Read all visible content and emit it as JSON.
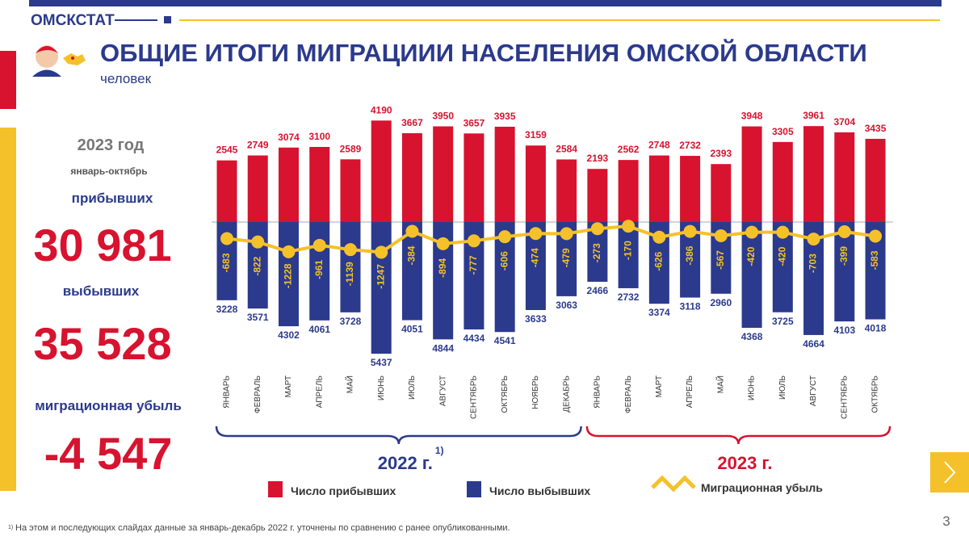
{
  "header": {
    "logo": "ОМСКСТАТ",
    "title": "ОБЩИЕ ИТОГИ МИГРАЦИИИ НАСЕЛЕНИЯ ОМСКОЙ ОБЛАСТИ",
    "subtitle": "человек"
  },
  "summary": {
    "year": "2023 год",
    "period": "январь-октябрь",
    "arrived_label": "прибывших",
    "arrived": "30 981",
    "departed_label": "выбывших",
    "departed": "35 528",
    "loss_label": "миграционная убыль",
    "loss": "-4 547"
  },
  "chart_data": {
    "type": "bar",
    "categories": [
      "ЯНВАРЬ",
      "ФЕВРАЛЬ",
      "МАРТ",
      "АПРЕЛЬ",
      "МАЙ",
      "ИЮНЬ",
      "ИЮЛЬ",
      "АВГУСТ",
      "СЕНТЯБРЬ",
      "ОКТЯБРЬ",
      "НОЯБРЬ",
      "ДЕКАБРЬ",
      "ЯНВАРЬ",
      "ФЕВРАЛЬ",
      "МАРТ",
      "АПРЕЛЬ",
      "МАЙ",
      "ИЮНЬ",
      "ИЮЛЬ",
      "АВГУСТ",
      "СЕНТЯБРЬ",
      "ОКТЯБРЬ"
    ],
    "groups": [
      {
        "label": "2022 г.",
        "footnote_mark": "1)",
        "color": "#2b3a8c",
        "count": 12
      },
      {
        "label": "2023 г.",
        "color": "#d7132f",
        "count": 10
      }
    ],
    "series": [
      {
        "name": "Число прибывших",
        "color": "#d7132f",
        "type": "bar",
        "values": [
          2545,
          2749,
          3074,
          3100,
          2589,
          4190,
          3667,
          3950,
          3657,
          3935,
          3159,
          2584,
          2193,
          2562,
          2748,
          2732,
          2393,
          3948,
          3305,
          3961,
          3704,
          3435
        ]
      },
      {
        "name": "Число выбывших",
        "color": "#2b3a8c",
        "type": "bar",
        "direction": "down",
        "values": [
          3228,
          3571,
          4302,
          4061,
          3728,
          5437,
          4051,
          4844,
          4434,
          4541,
          3633,
          3063,
          2466,
          2732,
          3374,
          3118,
          2960,
          4368,
          3725,
          4664,
          4103,
          4018
        ]
      },
      {
        "name": "Миграционная убыль",
        "color": "#f5c12a",
        "type": "line",
        "values": [
          -683,
          -822,
          -1228,
          -961,
          -1139,
          -1247,
          -384,
          -894,
          -777,
          -606,
          -474,
          -479,
          -273,
          -170,
          -626,
          -386,
          -567,
          -420,
          -420,
          -703,
          -399,
          -583
        ]
      }
    ]
  },
  "footnote": {
    "marker": "1)",
    "text": "На этом и последующих слайдах данные за январь-декабрь 2022 г. уточнены по сравнению с ранее опубликованными."
  },
  "page_number": "3"
}
